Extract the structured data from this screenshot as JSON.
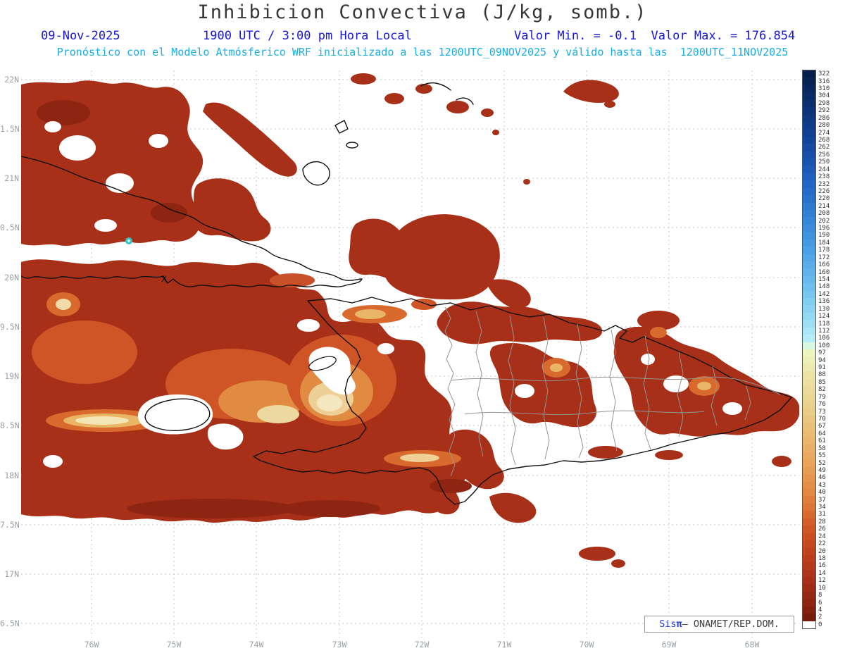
{
  "title": "Inhibicion Convectiva (J/kg, somb.)",
  "header": {
    "date": "09-Nov-2025",
    "time": "1900 UTC / 3:00 pm Hora Local",
    "minmax": "Valor Min. = -0.1  Valor Max. = 176.854",
    "forecast": "Pronóstico con el Modelo Atmósferico WRF inicializado a las 1200UTC_09NOV2025 y válido hasta las  1200UTC_11NOV2025"
  },
  "axes": {
    "lat_labels": [
      "22N",
      "1.5N",
      "21N",
      "0.5N",
      "20N",
      "9.5N",
      "19N",
      "8.5N",
      "18N",
      "7.5N",
      "17N",
      "6.5N"
    ],
    "lon_labels": [
      "76W",
      "75W",
      "74W",
      "73W",
      "72W",
      "71W",
      "70W",
      "69W",
      "68W"
    ]
  },
  "colorbar": {
    "units": "J/kg",
    "levels": [
      322,
      316,
      310,
      304,
      298,
      292,
      286,
      280,
      274,
      268,
      262,
      256,
      250,
      244,
      238,
      232,
      226,
      220,
      214,
      208,
      202,
      196,
      190,
      184,
      178,
      172,
      166,
      160,
      154,
      148,
      142,
      136,
      130,
      124,
      118,
      112,
      106,
      100,
      97,
      94,
      91,
      88,
      85,
      82,
      79,
      76,
      73,
      70,
      67,
      64,
      61,
      58,
      55,
      52,
      49,
      46,
      43,
      40,
      37,
      34,
      31,
      28,
      26,
      24,
      22,
      20,
      18,
      16,
      14,
      12,
      10,
      8,
      6,
      4,
      2,
      0
    ],
    "stops": [
      [
        322,
        "#061f4a"
      ],
      [
        298,
        "#0a2f6e"
      ],
      [
        268,
        "#12449a"
      ],
      [
        238,
        "#1f5fc0"
      ],
      [
        208,
        "#2f7fd4"
      ],
      [
        178,
        "#4aa0e4"
      ],
      [
        148,
        "#6fc0ee"
      ],
      [
        124,
        "#93d9f2"
      ],
      [
        106,
        "#b5ecf6"
      ],
      [
        100,
        "#d8f7e0"
      ],
      [
        97,
        "#ecf5c0"
      ],
      [
        88,
        "#ece4a6"
      ],
      [
        76,
        "#e9d28e"
      ],
      [
        64,
        "#e9bc72"
      ],
      [
        52,
        "#e9a458"
      ],
      [
        40,
        "#e28840"
      ],
      [
        31,
        "#d96a2e"
      ],
      [
        24,
        "#cc4f22"
      ],
      [
        18,
        "#bc3d1c"
      ],
      [
        12,
        "#a83018"
      ],
      [
        6,
        "#8e2412"
      ],
      [
        2,
        "#781c0e"
      ],
      [
        0,
        "#ffffff"
      ]
    ]
  },
  "branding": {
    "prefix": "Sis",
    "pi": "π",
    "suffix": "— ONAMET/REP.DOM."
  },
  "colors": {
    "header_blue": "#1616d6",
    "header_cyan": "#18aee6",
    "title_gray": "#383838",
    "field_red": "#a83018",
    "field_dark_red": "#8e2412",
    "field_orange": "#d96a2e",
    "field_cream": "#f4e8c0"
  }
}
